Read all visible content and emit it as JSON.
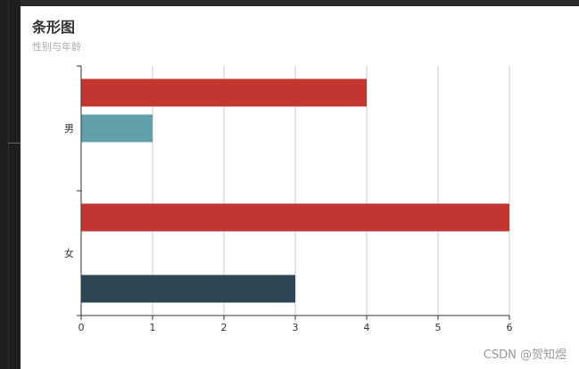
{
  "chart_data": {
    "type": "bar",
    "orientation": "horizontal",
    "title": "条形图",
    "subtitle": "性别与年龄",
    "categories": [
      "男",
      "女"
    ],
    "series": [
      {
        "color": "#c23531",
        "values": [
          4,
          6
        ]
      },
      {
        "color": "#61a0a8",
        "values": [
          1,
          null
        ]
      },
      {
        "color": "#2f4554",
        "values": [
          null,
          3
        ]
      }
    ],
    "xlim": [
      0,
      6
    ],
    "xticks": [
      "0",
      "1",
      "2",
      "3",
      "4",
      "5",
      "6"
    ],
    "grid": true
  },
  "watermark": "CSDN @贺知煜"
}
